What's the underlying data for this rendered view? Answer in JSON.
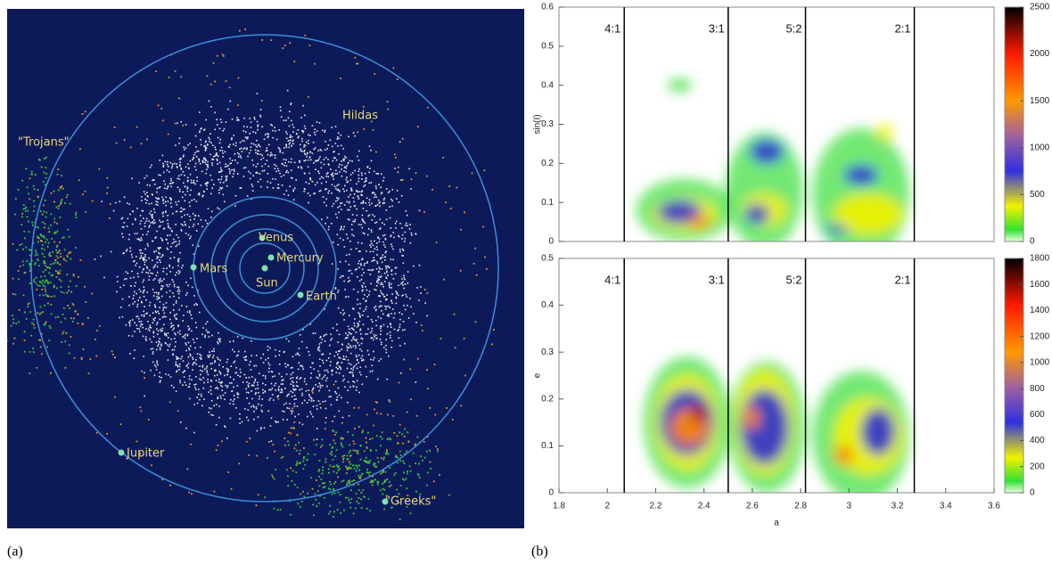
{
  "diagram": {
    "caption": "(a)",
    "labels": [
      "\"Trojans\"",
      "Hildas",
      "Venus",
      "Mercury",
      "Mars",
      "Sun",
      "Earth",
      "Jupiter",
      "\"Greeks\""
    ]
  },
  "caption_b": "(b)",
  "chart_data": [
    {
      "type": "heatmap",
      "y_label": "sin(I)",
      "xlim": [
        1.8,
        3.6
      ],
      "ylim": [
        0,
        0.6
      ],
      "yticks": [
        0,
        0.1,
        0.2,
        0.3,
        0.4,
        0.5,
        0.6
      ],
      "resonances": [
        {
          "label": "4:1",
          "a": 2.07
        },
        {
          "label": "3:1",
          "a": 2.5
        },
        {
          "label": "5:2",
          "a": 2.82
        },
        {
          "label": "2:1",
          "a": 3.27
        }
      ],
      "colorbar": {
        "lim": [
          0,
          2500
        ],
        "ticks": [
          0,
          500,
          1000,
          1500,
          2000,
          2500
        ]
      }
    },
    {
      "type": "heatmap",
      "y_label": "e",
      "x_label": "a",
      "xlim": [
        1.8,
        3.6
      ],
      "ylim": [
        0,
        0.5
      ],
      "xticks": [
        1.8,
        2,
        2.2,
        2.4,
        2.6,
        2.8,
        3,
        3.2,
        3.4,
        3.6
      ],
      "yticks": [
        0,
        0.1,
        0.2,
        0.3,
        0.4,
        0.5
      ],
      "resonances": [
        {
          "label": "4:1",
          "a": 2.07
        },
        {
          "label": "3:1",
          "a": 2.5
        },
        {
          "label": "5:2",
          "a": 2.82
        },
        {
          "label": "2:1",
          "a": 3.27
        }
      ],
      "colorbar": {
        "lim": [
          0,
          1800
        ],
        "ticks": [
          0,
          200,
          400,
          600,
          800,
          1000,
          1200,
          1400,
          1600,
          1800
        ]
      }
    }
  ]
}
